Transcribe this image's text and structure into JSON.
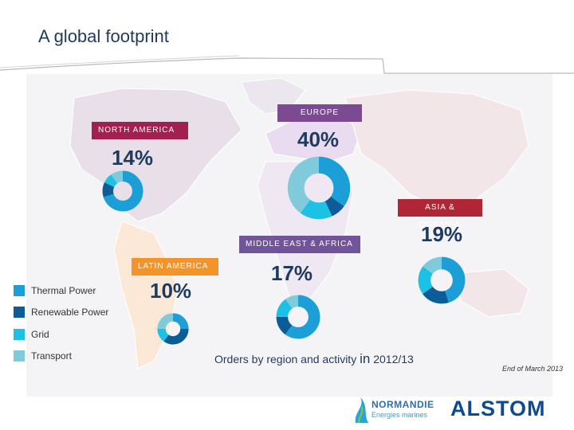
{
  "page": {
    "title": "A global footprint"
  },
  "colors": {
    "thermal": "#1b9fd6",
    "renewable": "#0c5c97",
    "grid": "#1cc1e6",
    "transport": "#7fcbdc",
    "navy": "#1f3a5f",
    "europe_label": "#7b4a92",
    "north_america_label": "#a0204f",
    "asia_label": "#b02636",
    "middle_east_label": "#5b3a8a",
    "latin_america_label": "#f2942a"
  },
  "regions": {
    "europe": {
      "label": "EUROPE",
      "percent": "40%",
      "mix": [
        {
          "activity": "Thermal Power",
          "share": 0.35
        },
        {
          "activity": "Renewable Power",
          "share": 0.08
        },
        {
          "activity": "Grid",
          "share": 0.17
        },
        {
          "activity": "Transport",
          "share": 0.4
        }
      ]
    },
    "north_america": {
      "label": "NORTH AMERICA",
      "percent": "14%",
      "mix": [
        {
          "activity": "Thermal Power",
          "share": 0.7
        },
        {
          "activity": "Renewable Power",
          "share": 0.12
        },
        {
          "activity": "Grid",
          "share": 0.08
        },
        {
          "activity": "Transport",
          "share": 0.1
        }
      ]
    },
    "asia_oceania": {
      "label": "ASIA & OCEANIA",
      "percent": "19%",
      "mix": [
        {
          "activity": "Thermal Power",
          "share": 0.45
        },
        {
          "activity": "Renewable Power",
          "share": 0.2
        },
        {
          "activity": "Grid",
          "share": 0.2
        },
        {
          "activity": "Transport",
          "share": 0.15
        }
      ]
    },
    "middle_east_africa": {
      "label": "MIDDLE EAST & AFRICA",
      "percent": "17%",
      "mix": [
        {
          "activity": "Thermal Power",
          "share": 0.6
        },
        {
          "activity": "Renewable Power",
          "share": 0.15
        },
        {
          "activity": "Grid",
          "share": 0.15
        },
        {
          "activity": "Transport",
          "share": 0.1
        }
      ]
    },
    "latin_america": {
      "label": "LATIN AMERICA",
      "percent": "10%",
      "mix": [
        {
          "activity": "Thermal Power",
          "share": 0.25
        },
        {
          "activity": "Renewable Power",
          "share": 0.35
        },
        {
          "activity": "Grid",
          "share": 0.15
        },
        {
          "activity": "Transport",
          "share": 0.25
        }
      ]
    }
  },
  "legend": [
    {
      "label": "Thermal Power",
      "color": "#1b9fd6"
    },
    {
      "label": "Renewable Power",
      "color": "#0c5c97"
    },
    {
      "label": "Grid",
      "color": "#1cc1e6"
    },
    {
      "label": "Transport",
      "color": "#7fcbdc"
    }
  ],
  "caption": {
    "prefix": "Orders by region and activity",
    "in": "in",
    "period": "2012/13"
  },
  "date_note": "End of March 2013",
  "logos": {
    "partner_line1": "NORMANDIE",
    "partner_line2": "Energies marines",
    "alstom": "ALSTOM"
  }
}
